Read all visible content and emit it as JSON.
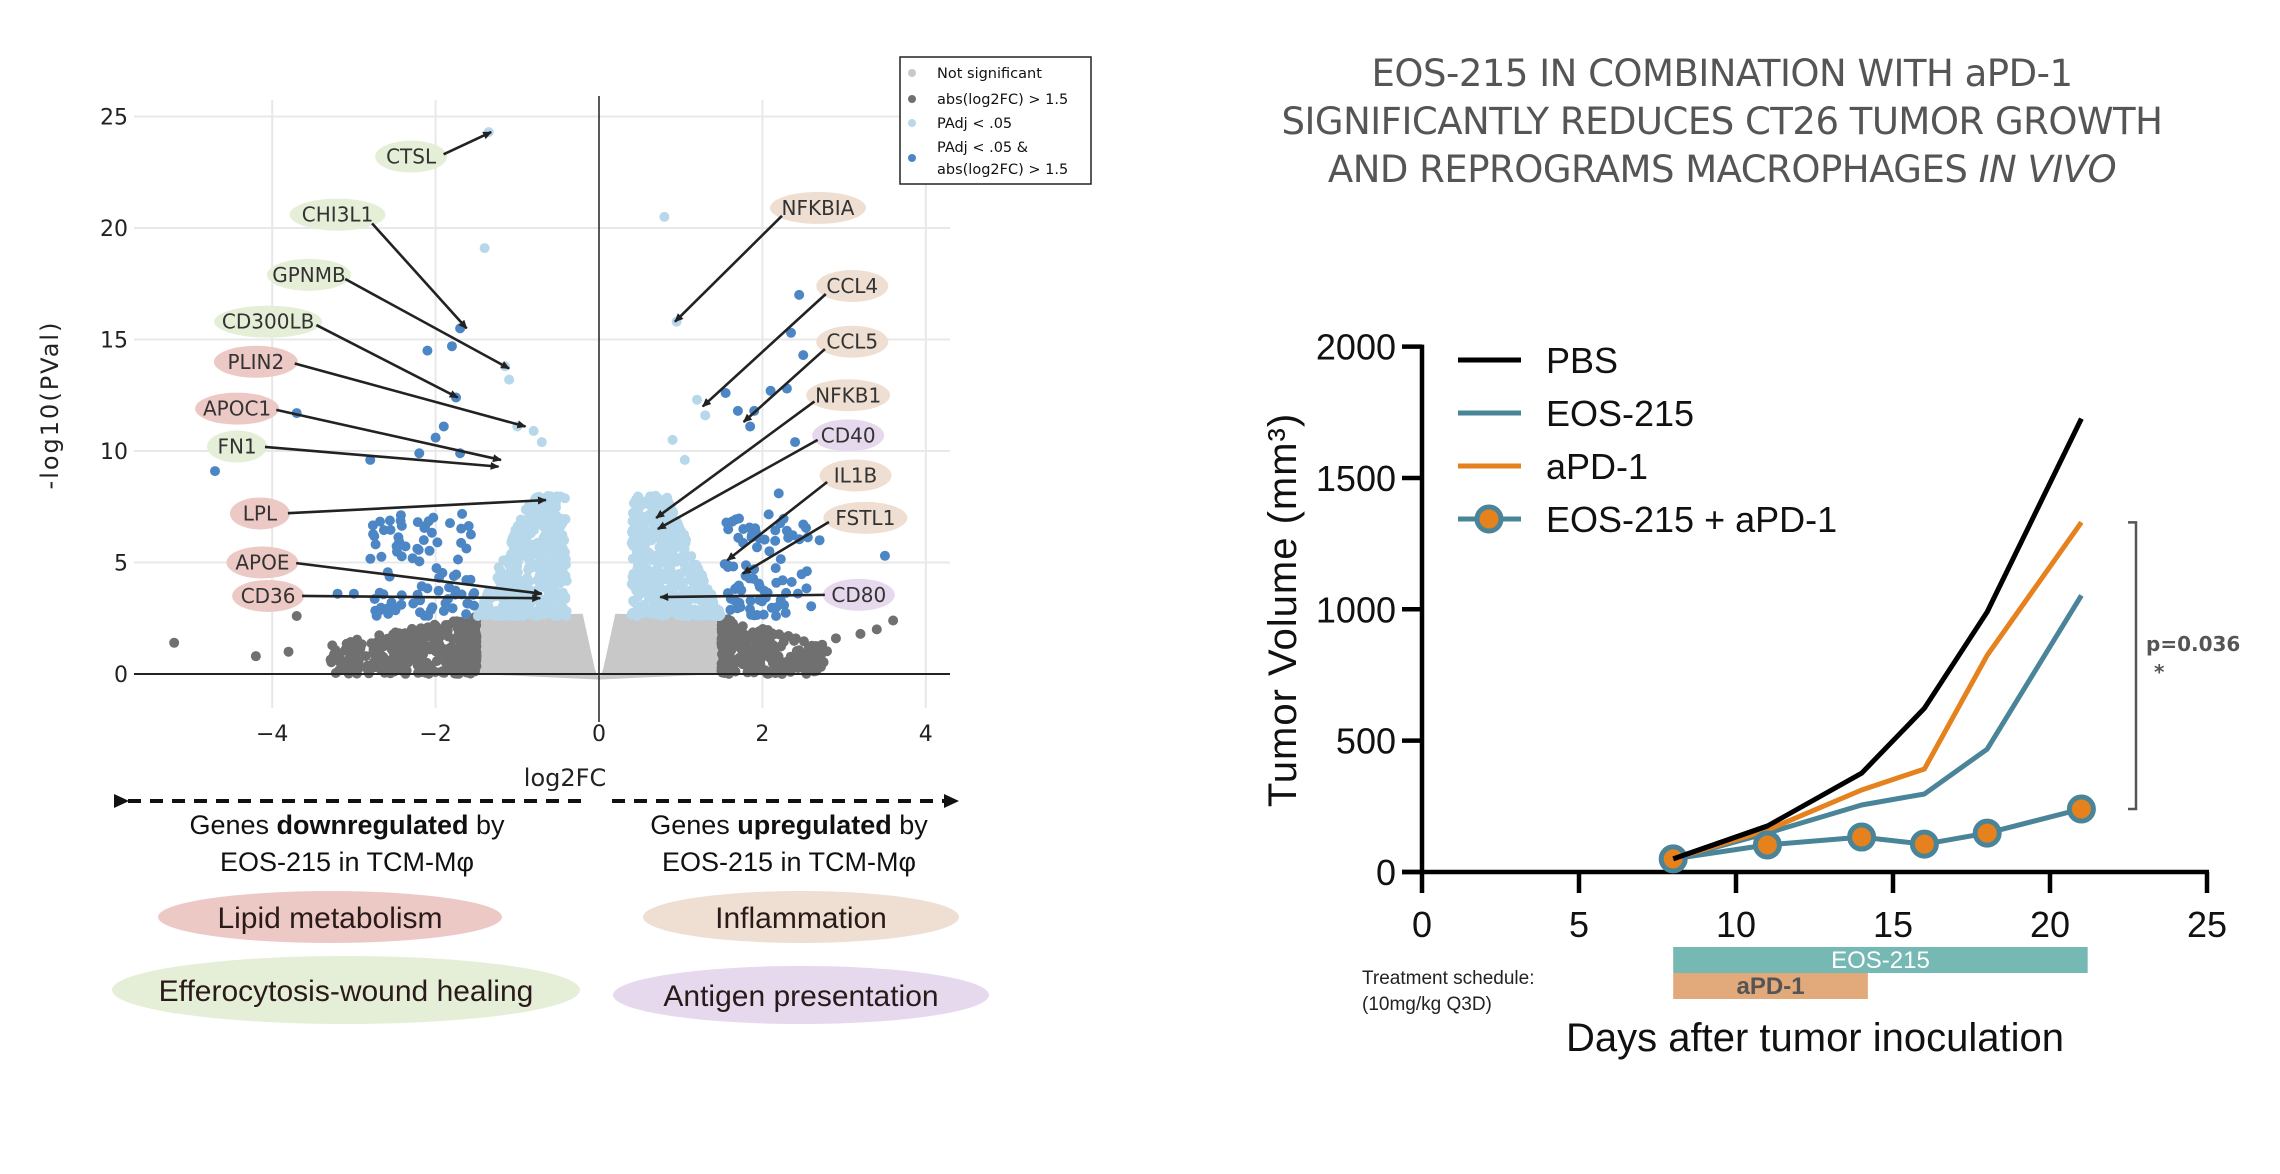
{
  "chart_data": [
    {
      "type": "scatter",
      "name": "volcano-plot",
      "title": "",
      "xlabel": "log2FC",
      "ylabel": "-log10(PVal)",
      "xlim": [
        -5.6,
        4.3
      ],
      "ylim": [
        -0.6,
        25.8
      ],
      "xticks": [
        -4,
        -2,
        0,
        2,
        4
      ],
      "xtick_labels": [
        "−4",
        "−2",
        "0",
        "2",
        "4"
      ],
      "yticks": [
        0,
        5,
        10,
        15,
        20,
        25
      ],
      "ytick_labels": [
        "0",
        "5",
        "10",
        "15",
        "20",
        "25"
      ],
      "grid": true,
      "legend_position": "top-right",
      "legend": [
        {
          "label": "Not significant",
          "color": "#c8c8c8"
        },
        {
          "label": "abs(log2FC) > 1.5",
          "color": "#707070"
        },
        {
          "label": "PAdj < .05",
          "color": "#b7d7ea"
        },
        {
          "label": "PAdj < .05 &",
          "label2": "abs(log2FC) > 1.5",
          "color": "#4d86c4"
        }
      ],
      "categories_colors": {
        "not_significant": "#c8c8c8",
        "fc_only": "#707070",
        "padj_only": "#b7d7ea",
        "padj_and_fc": "#4d86c4"
      },
      "thresholds": {
        "log2fc": 1.5,
        "neglog10p": 2.6
      },
      "clouds": [
        {
          "category": "not_significant",
          "x": [
            -1.5,
            1.5
          ],
          "y": [
            0,
            2.6
          ],
          "n": 0,
          "filled": true
        },
        {
          "category": "fc_only",
          "x": [
            -3.3,
            -1.5
          ],
          "y": [
            0,
            2.6
          ],
          "n": 380
        },
        {
          "category": "fc_only",
          "x": [
            1.5,
            2.8
          ],
          "y": [
            0,
            2.6
          ],
          "n": 260
        },
        {
          "category": "padj_only",
          "x": [
            -1.5,
            -0.2
          ],
          "y": [
            2.6,
            8.0
          ],
          "n": 420
        },
        {
          "category": "padj_only",
          "x": [
            0.2,
            1.5
          ],
          "y": [
            2.6,
            8.0
          ],
          "n": 420
        },
        {
          "category": "padj_and_fc",
          "x": [
            -2.8,
            -1.5
          ],
          "y": [
            2.6,
            7.2
          ],
          "n": 90
        },
        {
          "category": "padj_and_fc",
          "x": [
            1.5,
            2.6
          ],
          "y": [
            2.6,
            7.2
          ],
          "n": 80
        }
      ],
      "points": [
        {
          "x": -5.2,
          "y": 1.4,
          "category": "fc_only"
        },
        {
          "x": -4.2,
          "y": 0.8,
          "category": "fc_only"
        },
        {
          "x": -3.8,
          "y": 1.0,
          "category": "fc_only"
        },
        {
          "x": -3.7,
          "y": 2.6,
          "category": "fc_only"
        },
        {
          "x": 3.2,
          "y": 1.8,
          "category": "fc_only"
        },
        {
          "x": 3.4,
          "y": 2.0,
          "category": "fc_only"
        },
        {
          "x": 3.6,
          "y": 2.4,
          "category": "fc_only"
        },
        {
          "x": 2.9,
          "y": 1.6,
          "category": "fc_only"
        },
        {
          "x": -4.7,
          "y": 9.1,
          "category": "padj_and_fc"
        },
        {
          "x": -3.7,
          "y": 11.7,
          "category": "padj_and_fc"
        },
        {
          "x": -3.9,
          "y": 5.0,
          "category": "padj_and_fc"
        },
        {
          "x": -3.85,
          "y": 3.3,
          "category": "padj_and_fc"
        },
        {
          "x": -3.2,
          "y": 3.6,
          "category": "padj_and_fc"
        },
        {
          "x": -3.0,
          "y": 3.6,
          "category": "padj_and_fc"
        },
        {
          "x": -2.8,
          "y": 9.6,
          "category": "padj_and_fc"
        },
        {
          "x": -2.2,
          "y": 9.9,
          "category": "padj_and_fc"
        },
        {
          "x": -2.0,
          "y": 10.6,
          "category": "padj_and_fc"
        },
        {
          "x": -1.9,
          "y": 11.1,
          "category": "padj_and_fc"
        },
        {
          "x": -2.1,
          "y": 14.5,
          "category": "padj_and_fc"
        },
        {
          "x": -1.8,
          "y": 14.7,
          "category": "padj_and_fc"
        },
        {
          "x": -1.7,
          "y": 15.5,
          "category": "padj_and_fc"
        },
        {
          "x": -1.75,
          "y": 12.4,
          "category": "padj_and_fc"
        },
        {
          "x": -1.7,
          "y": 9.9,
          "category": "padj_and_fc"
        },
        {
          "x": -1.35,
          "y": 24.3,
          "category": "padj_only"
        },
        {
          "x": -1.4,
          "y": 19.1,
          "category": "padj_only"
        },
        {
          "x": -1.15,
          "y": 13.8,
          "category": "padj_only"
        },
        {
          "x": -1.1,
          "y": 13.2,
          "category": "padj_only"
        },
        {
          "x": -1.0,
          "y": 11.1,
          "category": "padj_only"
        },
        {
          "x": -0.8,
          "y": 10.9,
          "category": "padj_only"
        },
        {
          "x": -0.7,
          "y": 10.4,
          "category": "padj_only"
        },
        {
          "x": 0.8,
          "y": 20.5,
          "category": "padj_only"
        },
        {
          "x": 0.95,
          "y": 15.8,
          "category": "padj_only"
        },
        {
          "x": 1.2,
          "y": 12.3,
          "category": "padj_only"
        },
        {
          "x": 1.3,
          "y": 11.6,
          "category": "padj_only"
        },
        {
          "x": 0.9,
          "y": 10.5,
          "category": "padj_only"
        },
        {
          "x": 1.05,
          "y": 9.6,
          "category": "padj_only"
        },
        {
          "x": 2.45,
          "y": 17.0,
          "category": "padj_and_fc"
        },
        {
          "x": 2.35,
          "y": 15.3,
          "category": "padj_and_fc"
        },
        {
          "x": 2.5,
          "y": 14.3,
          "category": "padj_and_fc"
        },
        {
          "x": 1.55,
          "y": 12.6,
          "category": "padj_and_fc"
        },
        {
          "x": 2.1,
          "y": 12.7,
          "category": "padj_and_fc"
        },
        {
          "x": 2.3,
          "y": 12.8,
          "category": "padj_and_fc"
        },
        {
          "x": 1.7,
          "y": 11.8,
          "category": "padj_and_fc"
        },
        {
          "x": 1.9,
          "y": 11.8,
          "category": "padj_and_fc"
        },
        {
          "x": 1.85,
          "y": 11.1,
          "category": "padj_and_fc"
        },
        {
          "x": 2.4,
          "y": 10.4,
          "category": "padj_and_fc"
        },
        {
          "x": 3.5,
          "y": 5.3,
          "category": "padj_and_fc"
        },
        {
          "x": 2.7,
          "y": 6.0,
          "category": "padj_and_fc"
        },
        {
          "x": 2.2,
          "y": 8.1,
          "category": "padj_and_fc"
        }
      ],
      "annotations": [
        {
          "gene": "CTSL",
          "group": "efferocytosis",
          "label_x": -2.3,
          "label_y": 23.2,
          "target_x": -1.32,
          "target_y": 24.3
        },
        {
          "gene": "CHI3L1",
          "group": "efferocytosis",
          "label_x": -3.2,
          "label_y": 20.6,
          "target_x": -1.62,
          "target_y": 15.5
        },
        {
          "gene": "GPNMB",
          "group": "efferocytosis",
          "label_x": -3.55,
          "label_y": 17.9,
          "target_x": -1.1,
          "target_y": 13.7
        },
        {
          "gene": "CD300LB",
          "group": "efferocytosis",
          "label_x": -4.05,
          "label_y": 15.8,
          "target_x": -1.73,
          "target_y": 12.4
        },
        {
          "gene": "PLIN2",
          "group": "lipid",
          "label_x": -4.2,
          "label_y": 14.0,
          "target_x": -0.9,
          "target_y": 11.1
        },
        {
          "gene": "APOC1",
          "group": "lipid",
          "label_x": -4.43,
          "label_y": 11.9,
          "target_x": -1.2,
          "target_y": 9.6
        },
        {
          "gene": "FN1",
          "group": "efferocytosis",
          "label_x": -4.43,
          "label_y": 10.2,
          "target_x": -1.23,
          "target_y": 9.3
        },
        {
          "gene": "LPL",
          "group": "lipid",
          "label_x": -4.15,
          "label_y": 7.2,
          "target_x": -0.65,
          "target_y": 7.8
        },
        {
          "gene": "APOE",
          "group": "lipid",
          "label_x": -4.12,
          "label_y": 5.0,
          "target_x": -0.7,
          "target_y": 3.6
        },
        {
          "gene": "CD36",
          "group": "lipid",
          "label_x": -4.05,
          "label_y": 3.5,
          "target_x": -0.72,
          "target_y": 3.4
        },
        {
          "gene": "NFKBIA",
          "group": "inflammation",
          "label_x": 2.68,
          "label_y": 20.9,
          "target_x": 0.93,
          "target_y": 15.8
        },
        {
          "gene": "CCL4",
          "group": "inflammation",
          "label_x": 3.1,
          "label_y": 17.4,
          "target_x": 1.27,
          "target_y": 12.0
        },
        {
          "gene": "CCL5",
          "group": "inflammation",
          "label_x": 3.1,
          "label_y": 14.9,
          "target_x": 1.77,
          "target_y": 11.3
        },
        {
          "gene": "NFKB1",
          "group": "inflammation",
          "label_x": 3.05,
          "label_y": 12.5,
          "target_x": 0.7,
          "target_y": 7.0
        },
        {
          "gene": "CD40",
          "group": "antigen",
          "label_x": 3.05,
          "label_y": 10.7,
          "target_x": 0.72,
          "target_y": 6.5
        },
        {
          "gene": "IL1B",
          "group": "inflammation",
          "label_x": 3.14,
          "label_y": 8.9,
          "target_x": 1.57,
          "target_y": 5.1
        },
        {
          "gene": "FSTL1",
          "group": "inflammation",
          "label_x": 3.26,
          "label_y": 7.0,
          "target_x": 1.76,
          "target_y": 4.5
        },
        {
          "gene": "CD80",
          "group": "antigen",
          "label_x": 3.18,
          "label_y": 3.55,
          "target_x": 0.75,
          "target_y": 3.45
        }
      ],
      "group_colors": {
        "lipid": "#edc9c6",
        "efferocytosis": "#e5efd8",
        "inflammation": "#eedfd2",
        "antigen": "#e6d9ee"
      }
    },
    {
      "type": "line",
      "name": "tumor-growth",
      "title": "EOS-215 IN COMBINATION WITH aPD-1 SIGNIFICANTLY REDUCES CT26 TUMOR GROWTH AND REPROGRAMS MACROPHAGES IN VIVO",
      "xlabel": "Days after tumor inoculation",
      "ylabel": "Tumor Volume (mm³)",
      "xlim": [
        0,
        25
      ],
      "ylim": [
        0,
        2000
      ],
      "xticks": [
        0,
        5,
        10,
        15,
        20,
        25
      ],
      "yticks": [
        0,
        500,
        1000,
        1500,
        2000
      ],
      "grid": false,
      "legend_position": "top-left",
      "x": [
        8,
        11,
        14,
        16,
        18,
        21
      ],
      "series": [
        {
          "name": "PBS",
          "color": "#000000",
          "markers": false,
          "values": [
            50,
            175,
            376,
            623,
            990,
            1726
          ]
        },
        {
          "name": "EOS-215",
          "color": "#4a8499",
          "markers": false,
          "values": [
            50,
            148,
            255,
            297,
            468,
            1053
          ]
        },
        {
          "name": "aPD-1",
          "color": "#e6821e",
          "markers": false,
          "values": [
            50,
            160,
            312,
            392,
            825,
            1331
          ]
        },
        {
          "name": "EOS-215 + aPD-1",
          "color": "#4a8499",
          "marker_fill": "#e6821e",
          "markers": true,
          "values": [
            50,
            103,
            133,
            106,
            148,
            240
          ]
        }
      ],
      "significance": {
        "between": [
          "aPD-1",
          "EOS-215 + aPD-1"
        ],
        "y_range": [
          240,
          1331
        ],
        "label": "p=0.036",
        "star": "*"
      },
      "treatment_schedule": {
        "label_line1": "Treatment schedule:",
        "label_line2": "(10mg/kg Q3D)",
        "bars": [
          {
            "name": "EOS-215",
            "start_day": 8,
            "end_day": 21.2,
            "color": "#76b8b3",
            "text_color": "#ffffff"
          },
          {
            "name": "aPD-1",
            "start_day": 8,
            "end_day": 14.2,
            "color": "#e2a97a",
            "text_color": "#555555"
          }
        ]
      }
    }
  ],
  "right_title": {
    "line1": "EOS-215 IN COMBINATION WITH aPD-1",
    "line2": "SIGNIFICANTLY REDUCES CT26 TUMOR GROWTH",
    "line3_normal": "AND REPROGRAMS MACROPHAGES ",
    "line3_italic": "IN VIVO"
  },
  "left_annotations": {
    "down_line1_pre": "Genes ",
    "down_line1_bold": "downregulated",
    "down_line1_post": " by",
    "down_line2": "EOS-215 in TCM-Mφ",
    "up_line1_pre": "Genes ",
    "up_line1_bold": "upregulated",
    "up_line1_post": " by",
    "up_line2": "EOS-215 in TCM-Mφ",
    "categories": [
      {
        "label": "Lipid metabolism",
        "group": "lipid"
      },
      {
        "label": "Inflammation",
        "group": "inflammation"
      },
      {
        "label": "Efferocytosis-wound healing",
        "group": "efferocytosis"
      },
      {
        "label": "Antigen presentation",
        "group": "antigen"
      }
    ]
  }
}
